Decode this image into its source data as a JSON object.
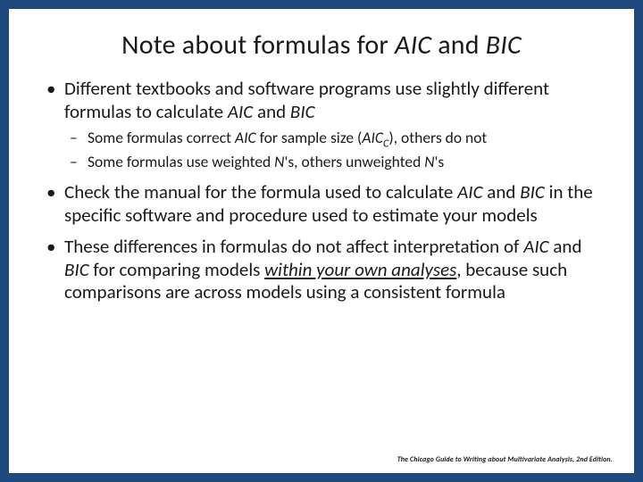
{
  "colors": {
    "background_outer": "#1f497d",
    "background_slide": "#ffffff",
    "text": "#1a1a1a"
  },
  "title": {
    "pre": "Note about formulas for ",
    "aic": "AIC",
    "mid": " and ",
    "bic": "BIC",
    "fontsize": 30
  },
  "bullets": {
    "b1": {
      "pre": "Different textbooks and software programs use slightly different formulas to calculate ",
      "aic": "AIC",
      "mid": " and ",
      "bic": "BIC",
      "fontsize": 21
    },
    "b1a": {
      "pre": "Some formulas correct ",
      "aic": "AIC",
      "mid": " for sample size (",
      "aicc": "AIC",
      "sub": "C",
      "post": "), others do not",
      "fontsize": 17.5
    },
    "b1b": {
      "pre": "Some formulas use weighted ",
      "n1": "N",
      "mid": "'s, others unweighted ",
      "n2": "N",
      "post": "'s",
      "fontsize": 17.5
    },
    "b2": {
      "pre": "Check the manual for the formula used to calculate ",
      "aic": "AIC",
      "mid": " and ",
      "bic": "BIC",
      "post": " in the specific software and procedure used to estimate your models",
      "fontsize": 21
    },
    "b3": {
      "pre": "These differences in formulas do not affect interpretation of ",
      "aic": "AIC",
      "mid": " and ",
      "bic": "BIC",
      "mid2": " for comparing models ",
      "emph": "within your own analyses",
      "post": ", because such comparisons are across models using a consistent formula",
      "fontsize": 21
    }
  },
  "footer": {
    "text": "The Chicago Guide to Writing about Multivariate Analysis, 2nd Edition.",
    "fontsize": 8
  }
}
